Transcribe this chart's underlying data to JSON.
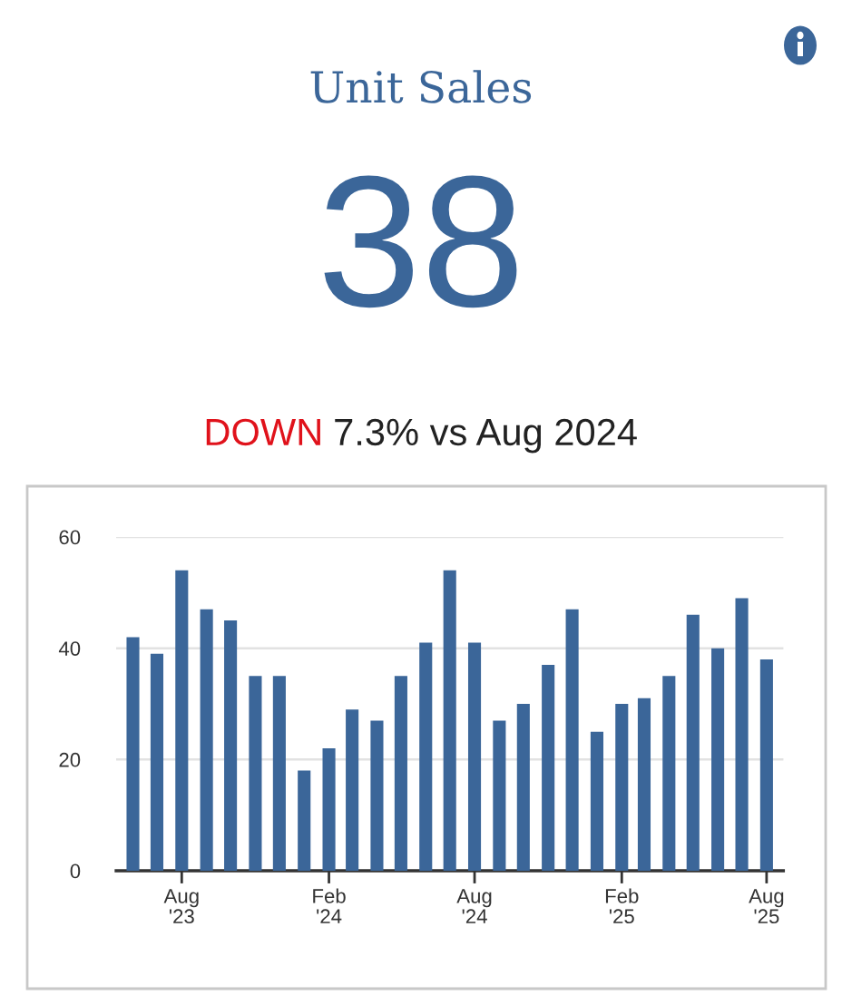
{
  "chart_data": {
    "type": "bar",
    "title": "Unit Sales",
    "subtitle": "DOWN 7.3% vs Aug 2024",
    "annotations": [
      "38"
    ],
    "x": [
      "2023-06",
      "2023-07",
      "2023-08",
      "2023-09",
      "2023-10",
      "2023-11",
      "2023-12",
      "2024-01",
      "2024-02",
      "2024-03",
      "2024-04",
      "2024-05",
      "2024-06",
      "2024-07",
      "2024-08",
      "2024-09",
      "2024-10",
      "2024-11",
      "2024-12",
      "2025-01",
      "2025-02",
      "2025-03",
      "2025-04",
      "2025-05",
      "2025-06",
      "2025-07",
      "2025-08"
    ],
    "values": [
      42,
      39,
      54,
      47,
      45,
      35,
      35,
      18,
      22,
      29,
      27,
      35,
      41,
      54,
      41,
      27,
      30,
      37,
      47,
      25,
      30,
      31,
      35,
      46,
      40,
      49,
      38
    ],
    "color": "#3b6699",
    "xlim": [
      "2023-05-11",
      "2025-08-22"
    ],
    "xticks": [
      {
        "value": "2023-08",
        "label": "Aug\n'23"
      },
      {
        "value": "2024-02",
        "label": "Feb\n'24"
      },
      {
        "value": "2024-08",
        "label": "Aug\n'24"
      },
      {
        "value": "2025-02",
        "label": "Feb\n'25"
      },
      {
        "value": "2025-08",
        "label": "Aug\n'25"
      }
    ],
    "ylim": [
      0,
      60
    ],
    "yticks": [
      0,
      20,
      40,
      60
    ],
    "grid": "y"
  }
}
